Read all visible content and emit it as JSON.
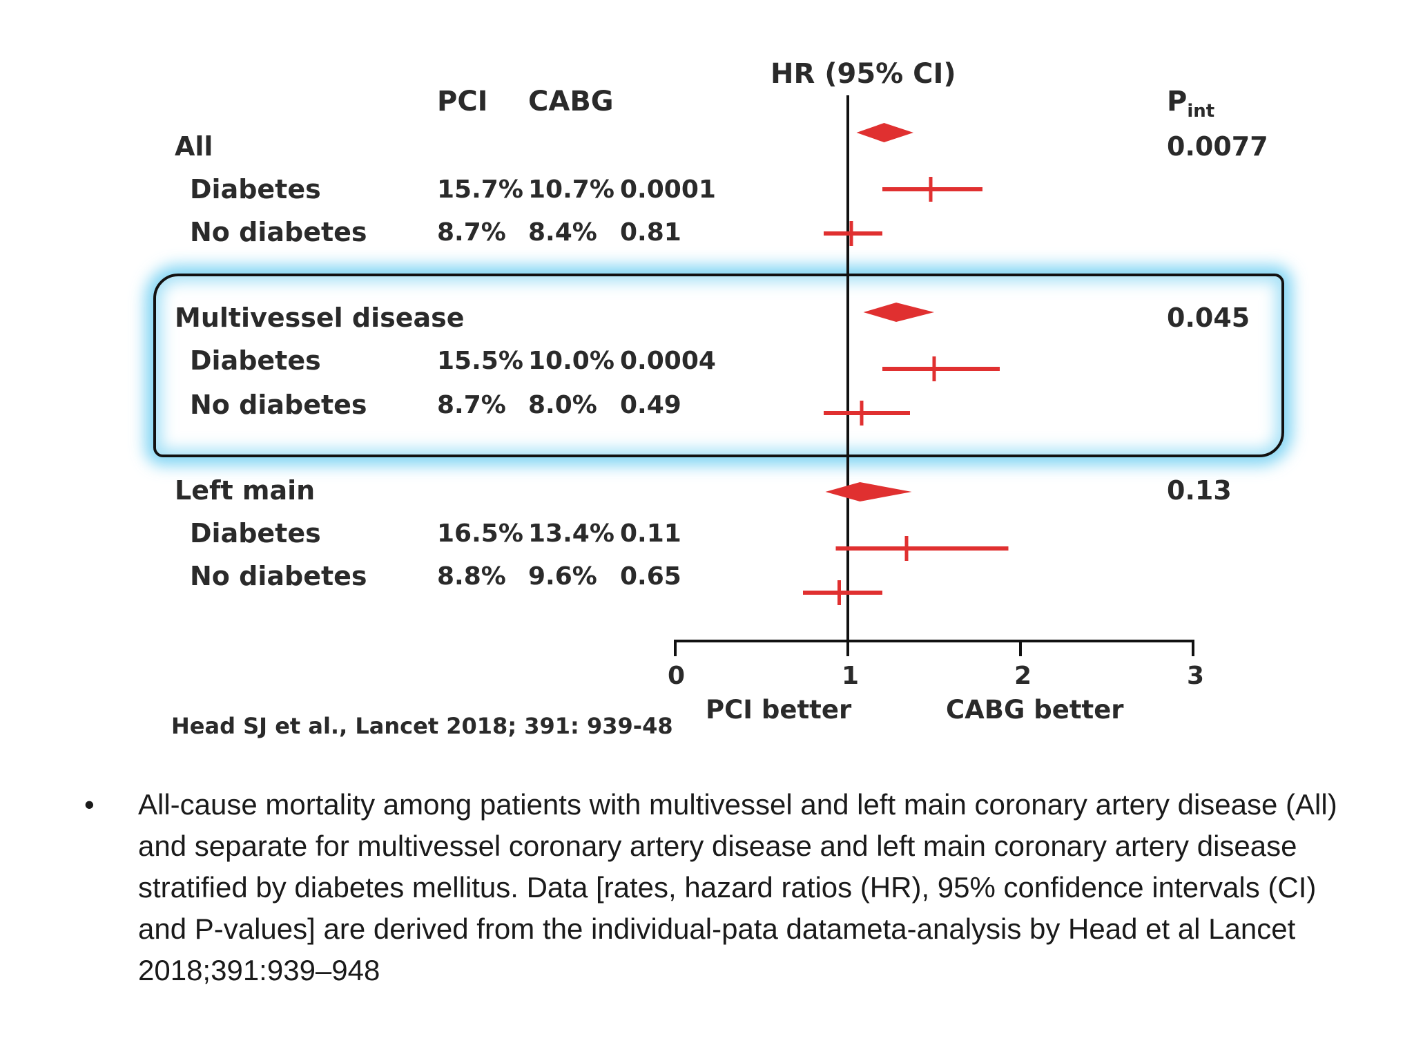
{
  "chart_data": {
    "type": "forest",
    "title": "HR (95% CI)",
    "column_headers": {
      "pci": "PCI",
      "cabg": "CABG",
      "pint_main": "P",
      "pint_sub": "int"
    },
    "x_ticks": [
      "0",
      "1",
      "2",
      "3"
    ],
    "xlim": [
      0,
      3
    ],
    "reference_line": 1,
    "xlabel_left": "PCI better",
    "xlabel_right": "CABG better",
    "groups": [
      {
        "label": "All",
        "p_int": "0.0077",
        "pooled": {
          "hr": 1.21,
          "lo": 1.05,
          "hi": 1.38
        },
        "rows": [
          {
            "label": "Diabetes",
            "pci": "15.7%",
            "cabg": "10.7%",
            "p": "0.0001",
            "hr": 1.48,
            "lo": 1.2,
            "hi": 1.78
          },
          {
            "label": "No diabetes",
            "pci": "8.7%",
            "cabg": "8.4%",
            "p": "0.81",
            "hr": 1.02,
            "lo": 0.86,
            "hi": 1.2
          }
        ]
      },
      {
        "label": "Multivessel disease",
        "p_int": "0.045",
        "pooled": {
          "hr": 1.28,
          "lo": 1.09,
          "hi": 1.5
        },
        "rows": [
          {
            "label": "Diabetes",
            "pci": "15.5%",
            "cabg": "10.0%",
            "p": "0.0004",
            "hr": 1.5,
            "lo": 1.2,
            "hi": 1.88
          },
          {
            "label": "No diabetes",
            "pci": "8.7%",
            "cabg": "8.0%",
            "p": "0.49",
            "hr": 1.08,
            "lo": 0.86,
            "hi": 1.36
          }
        ]
      },
      {
        "label": "Left main",
        "p_int": "0.13",
        "pooled": {
          "hr": 1.07,
          "lo": 0.87,
          "hi": 1.37
        },
        "rows": [
          {
            "label": "Diabetes",
            "pci": "16.5%",
            "cabg": "13.4%",
            "p": "0.11",
            "hr": 1.34,
            "lo": 0.93,
            "hi": 1.93
          },
          {
            "label": "No diabetes",
            "pci": "8.8%",
            "cabg": "9.6%",
            "p": "0.65",
            "hr": 0.95,
            "lo": 0.74,
            "hi": 1.2
          }
        ]
      }
    ],
    "highlighted_group": "Multivessel disease",
    "series_color": "#e03030"
  },
  "citation": "Head SJ et al., Lancet 2018; 391: 939-48",
  "caption": {
    "bullet": "•",
    "text": "All-cause mortality among patients with multivessel and left main coronary artery disease (All) and separate for multivessel coronary artery disease and left main coronary artery disease stratified by diabetes mellitus. Data [rates, hazard ratios (HR), 95% confidence intervals (CI) and P-values] are derived from the individual-pata datameta-analysis by Head et al Lancet 2018;391:939–948"
  }
}
